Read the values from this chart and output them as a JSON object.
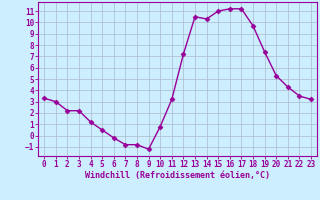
{
  "x": [
    0,
    1,
    2,
    3,
    4,
    5,
    6,
    7,
    8,
    9,
    10,
    11,
    12,
    13,
    14,
    15,
    16,
    17,
    18,
    19,
    20,
    21,
    22,
    23
  ],
  "y": [
    3.3,
    3.0,
    2.2,
    2.2,
    1.2,
    0.5,
    -0.2,
    -0.8,
    -0.8,
    -1.2,
    0.8,
    3.2,
    7.2,
    10.5,
    10.3,
    11.0,
    11.2,
    11.2,
    9.7,
    7.4,
    5.3,
    4.3,
    3.5,
    3.2
  ],
  "line_color": "#990099",
  "marker": "D",
  "marker_size": 2.5,
  "bg_color": "#cceeff",
  "grid_color": "#aabbcc",
  "xlabel": "Windchill (Refroidissement éolien,°C)",
  "xlim": [
    -0.5,
    23.5
  ],
  "ylim": [
    -1.8,
    11.8
  ],
  "xticks": [
    0,
    1,
    2,
    3,
    4,
    5,
    6,
    7,
    8,
    9,
    10,
    11,
    12,
    13,
    14,
    15,
    16,
    17,
    18,
    19,
    20,
    21,
    22,
    23
  ],
  "yticks": [
    -1,
    0,
    1,
    2,
    3,
    4,
    5,
    6,
    7,
    8,
    9,
    10,
    11
  ],
  "tick_fontsize": 5.5,
  "xlabel_fontsize": 6,
  "line_width": 1.0
}
